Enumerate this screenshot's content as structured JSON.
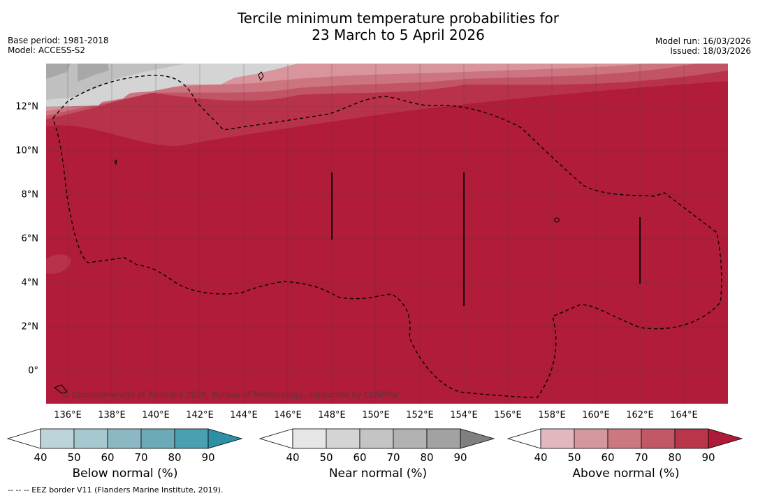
{
  "title_line1": "Tercile minimum temperature probabilities for",
  "title_line2": "23 March to 5 April 2026",
  "base_period": "Base period: 1981-2018",
  "model": "Model: ACCESS-S2",
  "model_run": "Model run: 16/03/2026",
  "issued": "Issued: 18/03/2026",
  "lat_labels": [
    "12°N",
    "10°N",
    "8°N",
    "6°N",
    "4°N",
    "2°N",
    "0°"
  ],
  "lon_labels": [
    "136°E",
    "138°E",
    "140°E",
    "142°E",
    "144°E",
    "146°E",
    "148°E",
    "150°E",
    "152°E",
    "154°E",
    "156°E",
    "158°E",
    "160°E",
    "162°E",
    "164°E"
  ],
  "copyright": "© Commonwealth of Australia 2026, Bureau of Meteorology, supported by COSPPac",
  "footer": "--  --  -- EEZ border V11 (Flanders Marine Institute, 2019).",
  "colorbars": [
    {
      "name": "below",
      "title": "Below normal (%)",
      "ticks": [
        "40",
        "50",
        "60",
        "70",
        "80",
        "90"
      ],
      "colors": [
        "#ffffff",
        "#bcd3da",
        "#a6c8cf",
        "#8cb8c4",
        "#6caab8",
        "#4aa0b0",
        "#2d90a4"
      ]
    },
    {
      "name": "near",
      "title": "Near normal (%)",
      "ticks": [
        "40",
        "50",
        "60",
        "70",
        "80",
        "90"
      ],
      "colors": [
        "#ffffff",
        "#e6e6e6",
        "#d4d4d4",
        "#c4c4c4",
        "#b2b2b2",
        "#a2a2a2",
        "#808080"
      ]
    },
    {
      "name": "above",
      "title": "Above normal (%)",
      "ticks": [
        "40",
        "50",
        "60",
        "70",
        "80",
        "90"
      ],
      "colors": [
        "#ffffff",
        "#e2b8be",
        "#d5979e",
        "#cc7880",
        "#c25865",
        "#b93549",
        "#ae1a38"
      ]
    }
  ],
  "colors": {
    "above_90": "#b01c3a",
    "above_80": "#b9324b",
    "above_70": "#c25565",
    "above_60": "#cc7580",
    "above_50": "#d8959c",
    "near_50": "#d4d4d4",
    "near_60": "#c0c0c0",
    "near_70": "#a8a8a8"
  }
}
